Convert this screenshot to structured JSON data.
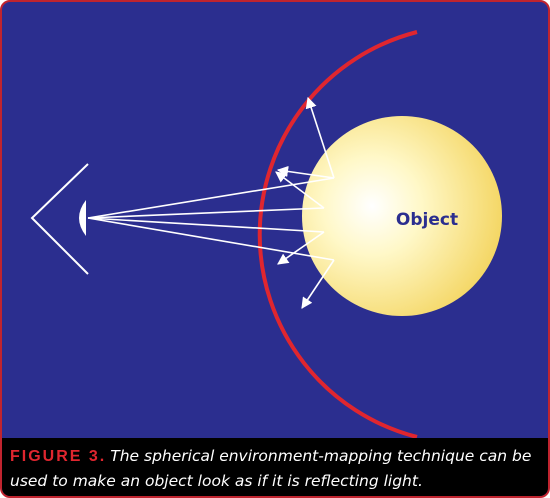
{
  "diagram": {
    "object_label": "Object"
  },
  "caption": {
    "figure_label": "FIGURE 3.",
    "text": "The spherical environment-mapping technique can be used to make an object look as if it is reflecting light."
  }
}
